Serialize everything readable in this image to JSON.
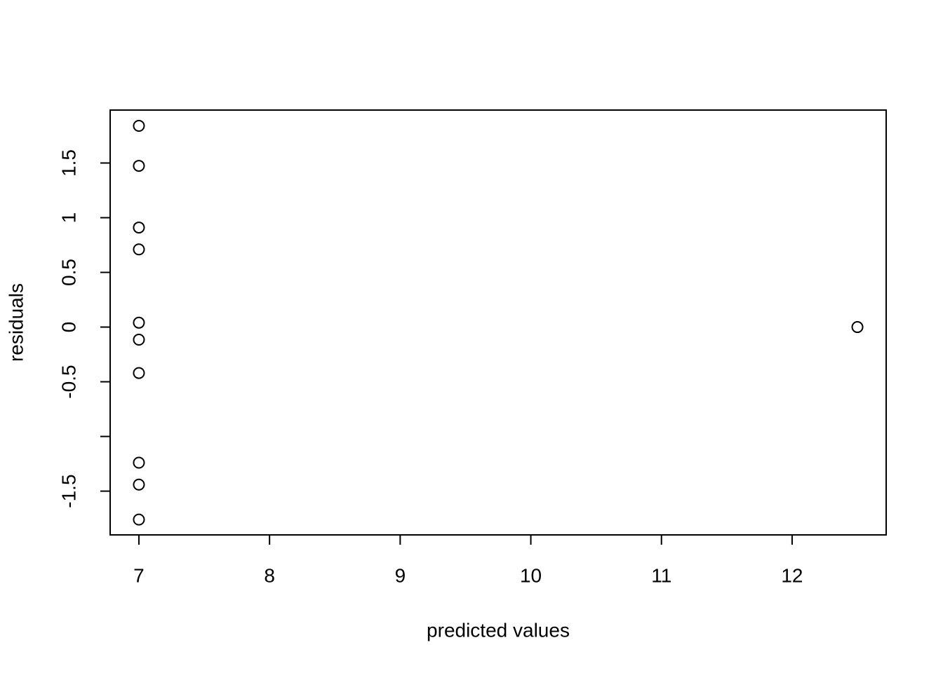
{
  "chart_data": {
    "type": "scatter",
    "xlabel": "predicted values",
    "ylabel": "residuals",
    "series": [
      {
        "color": "#000000",
        "x": [
          7,
          7,
          7,
          7,
          7,
          7,
          7,
          7,
          7,
          7,
          12.5
        ],
        "values": [
          1.84,
          1.474,
          0.91,
          0.71,
          0.04,
          -0.115,
          -0.42,
          -1.24,
          -1.44,
          -1.76,
          0
        ]
      }
    ],
    "xlim": [
      6.78,
      12.72
    ],
    "xticks": [
      7,
      8,
      9,
      10,
      11,
      12
    ],
    "ylim": [
      -1.9,
      1.984
    ],
    "yticks": [
      -0.5,
      0,
      0.5,
      1,
      1.5,
      {
        "value": -1.5,
        "label": "-1.5"
      },
      {
        "value": -1,
        "label": null
      }
    ],
    "grid": false
  }
}
